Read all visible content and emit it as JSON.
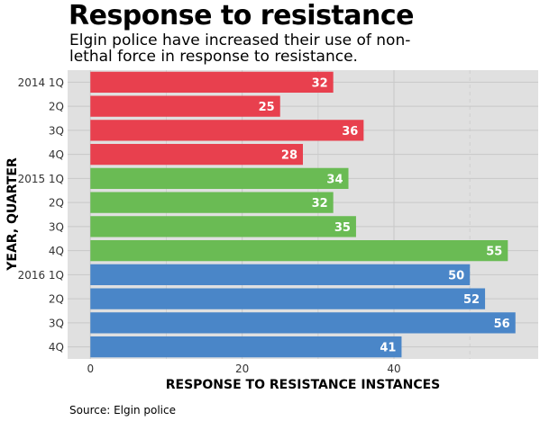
{
  "title": "Response to resistance",
  "subtitle": "Elgin police have increased their use of non-lethal force in response to resistance.",
  "source": "Source: Elgin police",
  "colors": {
    "panel": "#e0e0e0",
    "grid_major": "#c8c8c8",
    "grid_minor": "#cfcfcf",
    "2014": "#e8404e",
    "2015": "#6abb54",
    "2016": "#4a86c8",
    "label_text": "#ffffff"
  },
  "chart_data": {
    "type": "bar",
    "orientation": "horizontal",
    "title": "Response to resistance",
    "xlabel": "RESPONSE TO RESISTANCE INSTANCES",
    "ylabel": "YEAR, QUARTER",
    "xlim": [
      -3,
      59
    ],
    "xticks": [
      0,
      20,
      40
    ],
    "categories": [
      "2014 1Q",
      "2Q",
      "3Q",
      "4Q",
      "2015 1Q",
      "2Q",
      "3Q",
      "4Q",
      "2016 1Q",
      "2Q",
      "3Q",
      "4Q"
    ],
    "values": [
      32,
      25,
      36,
      28,
      34,
      32,
      35,
      55,
      50,
      52,
      56,
      41
    ],
    "color_groups": [
      "2014",
      "2014",
      "2014",
      "2014",
      "2015",
      "2015",
      "2015",
      "2015",
      "2016",
      "2016",
      "2016",
      "2016"
    ],
    "grid": true,
    "legend": "none"
  }
}
